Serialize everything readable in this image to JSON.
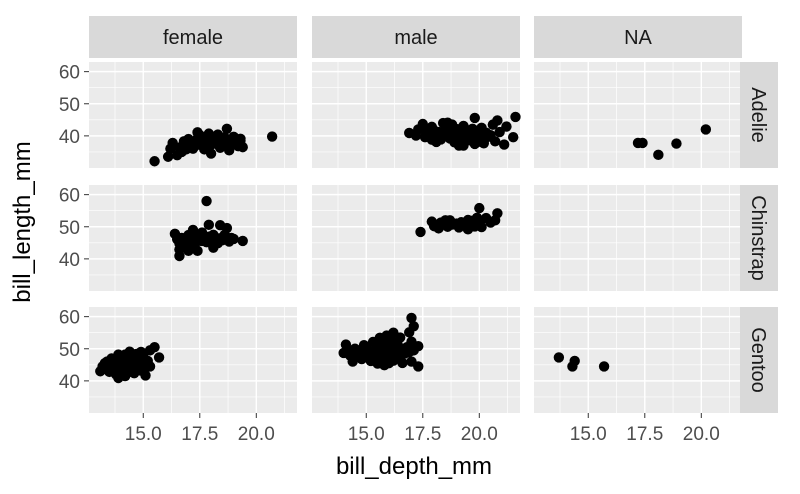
{
  "chart_data": {
    "type": "scatter",
    "xlabel": "bill_depth_mm",
    "ylabel": "bill_length_mm",
    "xlim": [
      12.6,
      21.8
    ],
    "ylim": [
      30,
      63
    ],
    "x_ticks": [
      15.0,
      17.5,
      20.0
    ],
    "x_tick_labels": [
      "15.0",
      "17.5",
      "20.0"
    ],
    "y_ticks": [
      40,
      50,
      60
    ],
    "y_tick_labels": [
      "40",
      "50",
      "60"
    ],
    "facet_cols": [
      "female",
      "male",
      "NA"
    ],
    "facet_rows": [
      "Adelie",
      "Chinstrap",
      "Gentoo"
    ],
    "grid": true,
    "panel_background": "#ebebeb",
    "strip_background": "#d9d9d9",
    "point_color": "#000000",
    "panels": [
      {
        "col": "female",
        "row": "Adelie",
        "points": [
          [
            15.5,
            32.1
          ],
          [
            16.1,
            33.5
          ],
          [
            16.5,
            34.0
          ],
          [
            16.7,
            35.0
          ],
          [
            16.9,
            35.8
          ],
          [
            16.2,
            36.0
          ],
          [
            16.6,
            36.4
          ],
          [
            17.0,
            36.6
          ],
          [
            17.3,
            36.9
          ],
          [
            17.6,
            37.0
          ],
          [
            18.0,
            37.2
          ],
          [
            18.3,
            37.3
          ],
          [
            18.7,
            37.6
          ],
          [
            19.1,
            37.7
          ],
          [
            16.9,
            37.9
          ],
          [
            17.2,
            38.0
          ],
          [
            17.5,
            38.3
          ],
          [
            17.8,
            38.5
          ],
          [
            18.2,
            38.6
          ],
          [
            18.5,
            38.8
          ],
          [
            18.9,
            38.9
          ],
          [
            19.3,
            39.1
          ],
          [
            17.0,
            39.0
          ],
          [
            17.4,
            39.2
          ],
          [
            17.8,
            39.5
          ],
          [
            18.1,
            39.6
          ],
          [
            18.6,
            39.5
          ],
          [
            19.0,
            39.7
          ],
          [
            17.5,
            40.2
          ],
          [
            17.9,
            40.7
          ],
          [
            18.3,
            40.4
          ],
          [
            17.4,
            41.1
          ],
          [
            18.7,
            42.2
          ],
          [
            20.7,
            39.8
          ],
          [
            16.3,
            37.8
          ],
          [
            16.8,
            38.3
          ],
          [
            17.2,
            36.0
          ],
          [
            17.7,
            35.8
          ],
          [
            18.4,
            36.3
          ],
          [
            18.8,
            35.5
          ],
          [
            19.2,
            36.8
          ],
          [
            19.0,
            38.3
          ],
          [
            18.0,
            34.5
          ],
          [
            19.4,
            36.5
          ],
          [
            19.3,
            38.5
          ]
        ]
      },
      {
        "col": "male",
        "row": "Adelie",
        "points": [
          [
            16.9,
            40.9
          ],
          [
            17.2,
            40.1
          ],
          [
            17.3,
            42.0
          ],
          [
            17.6,
            39.6
          ],
          [
            17.6,
            41.6
          ],
          [
            17.9,
            40.8
          ],
          [
            17.9,
            42.8
          ],
          [
            18.1,
            38.1
          ],
          [
            18.1,
            39.8
          ],
          [
            18.2,
            41.2
          ],
          [
            18.4,
            41.1
          ],
          [
            18.5,
            40.3
          ],
          [
            18.6,
            42.5
          ],
          [
            18.6,
            44.1
          ],
          [
            18.7,
            39.2
          ],
          [
            18.8,
            41.5
          ],
          [
            18.9,
            38.0
          ],
          [
            18.9,
            40.6
          ],
          [
            19.0,
            42.1
          ],
          [
            19.1,
            39.6
          ],
          [
            19.1,
            37.0
          ],
          [
            19.2,
            40.5
          ],
          [
            19.3,
            43.1
          ],
          [
            19.4,
            39.0
          ],
          [
            19.5,
            41.5
          ],
          [
            19.6,
            38.6
          ],
          [
            19.6,
            40.3
          ],
          [
            19.7,
            42.2
          ],
          [
            19.8,
            37.5
          ],
          [
            19.9,
            40.9
          ],
          [
            20.0,
            39.3
          ],
          [
            20.1,
            42.5
          ],
          [
            20.2,
            37.7
          ],
          [
            20.3,
            41.0
          ],
          [
            20.4,
            39.7
          ],
          [
            20.5,
            40.2
          ],
          [
            20.6,
            43.5
          ],
          [
            20.7,
            38.3
          ],
          [
            20.9,
            41.2
          ],
          [
            21.1,
            37.3
          ],
          [
            21.2,
            42.9
          ],
          [
            21.5,
            39.6
          ],
          [
            21.6,
            45.9
          ],
          [
            17.5,
            43.7
          ],
          [
            18.0,
            41.7
          ],
          [
            18.3,
            38.9
          ],
          [
            18.8,
            43.5
          ],
          [
            19.3,
            37.0
          ],
          [
            20.0,
            38.2
          ],
          [
            20.8,
            44.8
          ],
          [
            19.8,
            45.6
          ],
          [
            18.4,
            44.0
          ],
          [
            17.9,
            38.8
          ]
        ]
      },
      {
        "col": "NA",
        "row": "Adelie",
        "points": [
          [
            17.2,
            37.8
          ],
          [
            17.4,
            37.8
          ],
          [
            18.1,
            34.1
          ],
          [
            18.9,
            37.6
          ],
          [
            20.2,
            42.0
          ]
        ]
      },
      {
        "col": "female",
        "row": "Chinstrap",
        "points": [
          [
            16.4,
            47.8
          ],
          [
            16.5,
            46.1
          ],
          [
            16.6,
            44.8
          ],
          [
            16.6,
            42.9
          ],
          [
            16.6,
            40.9
          ],
          [
            16.7,
            46.5
          ],
          [
            16.9,
            45.4
          ],
          [
            17.0,
            47.4
          ],
          [
            17.1,
            45.9
          ],
          [
            17.2,
            44.6
          ],
          [
            17.3,
            46.2
          ],
          [
            17.4,
            45.5
          ],
          [
            17.4,
            42.5
          ],
          [
            17.5,
            47.0
          ],
          [
            17.6,
            45.6
          ],
          [
            17.7,
            46.0
          ],
          [
            17.8,
            45.2
          ],
          [
            17.9,
            46.9
          ],
          [
            17.9,
            50.6
          ],
          [
            17.8,
            58.0
          ],
          [
            18.0,
            45.7
          ],
          [
            18.1,
            43.5
          ],
          [
            18.2,
            46.6
          ],
          [
            18.3,
            44.9
          ],
          [
            18.4,
            46.4
          ],
          [
            18.4,
            50.5
          ],
          [
            18.5,
            45.8
          ],
          [
            18.6,
            47.5
          ],
          [
            18.7,
            49.6
          ],
          [
            18.8,
            45.4
          ],
          [
            19.0,
            46.2
          ],
          [
            19.4,
            45.6
          ],
          [
            17.2,
            49.0
          ],
          [
            16.8,
            44.5
          ],
          [
            17.0,
            42.5
          ],
          [
            17.6,
            48.2
          ],
          [
            18.1,
            47.5
          ],
          [
            18.9,
            46.5
          ]
        ]
      },
      {
        "col": "male",
        "row": "Chinstrap",
        "points": [
          [
            17.4,
            48.4
          ],
          [
            17.9,
            51.6
          ],
          [
            18.0,
            50.2
          ],
          [
            18.2,
            49.5
          ],
          [
            18.3,
            51.3
          ],
          [
            18.6,
            50.0
          ],
          [
            18.7,
            52.0
          ],
          [
            18.8,
            50.7
          ],
          [
            19.0,
            51.0
          ],
          [
            19.1,
            49.8
          ],
          [
            19.2,
            51.4
          ],
          [
            19.4,
            50.6
          ],
          [
            19.5,
            52.1
          ],
          [
            19.5,
            49.2
          ],
          [
            19.6,
            50.8
          ],
          [
            19.7,
            51.9
          ],
          [
            19.8,
            50.1
          ],
          [
            19.9,
            52.8
          ],
          [
            20.0,
            51.5
          ],
          [
            20.0,
            55.8
          ],
          [
            20.1,
            49.9
          ],
          [
            20.3,
            52.7
          ],
          [
            20.5,
            51.3
          ],
          [
            20.7,
            52.0
          ],
          [
            20.8,
            54.2
          ],
          [
            18.5,
            52.0
          ],
          [
            19.3,
            50.5
          ]
        ]
      },
      {
        "col": "female",
        "row": "Gentoo",
        "points": [
          [
            13.1,
            43.0
          ],
          [
            13.2,
            44.5
          ],
          [
            13.3,
            45.5
          ],
          [
            13.4,
            46.0
          ],
          [
            13.5,
            42.8
          ],
          [
            13.5,
            44.9
          ],
          [
            13.6,
            47.0
          ],
          [
            13.7,
            43.5
          ],
          [
            13.7,
            45.7
          ],
          [
            13.8,
            42.0
          ],
          [
            13.8,
            46.5
          ],
          [
            13.9,
            44.0
          ],
          [
            13.9,
            40.9
          ],
          [
            14.0,
            45.2
          ],
          [
            14.0,
            47.5
          ],
          [
            14.1,
            43.3
          ],
          [
            14.1,
            46.1
          ],
          [
            14.2,
            44.5
          ],
          [
            14.2,
            48.2
          ],
          [
            14.3,
            42.6
          ],
          [
            14.3,
            45.5
          ],
          [
            14.4,
            46.9
          ],
          [
            14.4,
            49.1
          ],
          [
            14.5,
            43.8
          ],
          [
            14.5,
            45.1
          ],
          [
            14.6,
            47.2
          ],
          [
            14.6,
            42.4
          ],
          [
            14.7,
            44.9
          ],
          [
            14.7,
            48.4
          ],
          [
            14.8,
            45.8
          ],
          [
            14.8,
            46.4
          ],
          [
            14.9,
            43.2
          ],
          [
            14.9,
            49.0
          ],
          [
            15.0,
            45.0
          ],
          [
            15.0,
            47.8
          ],
          [
            15.1,
            41.7
          ],
          [
            15.2,
            46.2
          ],
          [
            15.3,
            49.5
          ],
          [
            15.3,
            44.5
          ],
          [
            15.5,
            50.5
          ],
          [
            15.7,
            47.3
          ],
          [
            15.0,
            43.5
          ],
          [
            14.2,
            41.5
          ],
          [
            13.9,
            48.2
          ],
          [
            14.6,
            45.0
          ]
        ]
      },
      {
        "col": "male",
        "row": "Gentoo",
        "points": [
          [
            14.0,
            48.7
          ],
          [
            14.1,
            51.3
          ],
          [
            14.2,
            49.5
          ],
          [
            14.3,
            47.8
          ],
          [
            14.5,
            50.0
          ],
          [
            14.6,
            48.4
          ],
          [
            14.8,
            46.8
          ],
          [
            14.8,
            49.6
          ],
          [
            14.9,
            51.1
          ],
          [
            15.0,
            47.5
          ],
          [
            15.0,
            50.4
          ],
          [
            15.1,
            48.8
          ],
          [
            15.2,
            46.2
          ],
          [
            15.3,
            49.1
          ],
          [
            15.3,
            52.1
          ],
          [
            15.4,
            47.2
          ],
          [
            15.5,
            45.4
          ],
          [
            15.5,
            50.8
          ],
          [
            15.6,
            48.5
          ],
          [
            15.6,
            53.4
          ],
          [
            15.7,
            46.5
          ],
          [
            15.7,
            49.5
          ],
          [
            15.8,
            51.5
          ],
          [
            15.9,
            47.8
          ],
          [
            15.9,
            54.1
          ],
          [
            16.0,
            50.2
          ],
          [
            16.0,
            45.5
          ],
          [
            16.1,
            48.8
          ],
          [
            16.1,
            52.5
          ],
          [
            16.2,
            46.3
          ],
          [
            16.2,
            55.0
          ],
          [
            16.3,
            49.7
          ],
          [
            16.4,
            51.1
          ],
          [
            16.4,
            47.7
          ],
          [
            16.5,
            50.0
          ],
          [
            16.6,
            45.6
          ],
          [
            16.7,
            48.5
          ],
          [
            16.8,
            50.5
          ],
          [
            16.9,
            49.0
          ],
          [
            16.9,
            55.1
          ],
          [
            17.0,
            52.2
          ],
          [
            17.0,
            59.6
          ],
          [
            17.1,
            49.5
          ],
          [
            17.1,
            57.0
          ],
          [
            17.3,
            44.5
          ],
          [
            17.3,
            50.8
          ],
          [
            17.0,
            46.0
          ],
          [
            14.4,
            46.0
          ],
          [
            15.8,
            44.9
          ],
          [
            16.5,
            53.5
          ]
        ]
      },
      {
        "col": "NA",
        "row": "Gentoo",
        "points": [
          [
            13.7,
            47.3
          ],
          [
            14.3,
            44.5
          ],
          [
            14.4,
            46.2
          ],
          [
            15.7,
            44.5
          ]
        ]
      }
    ]
  }
}
